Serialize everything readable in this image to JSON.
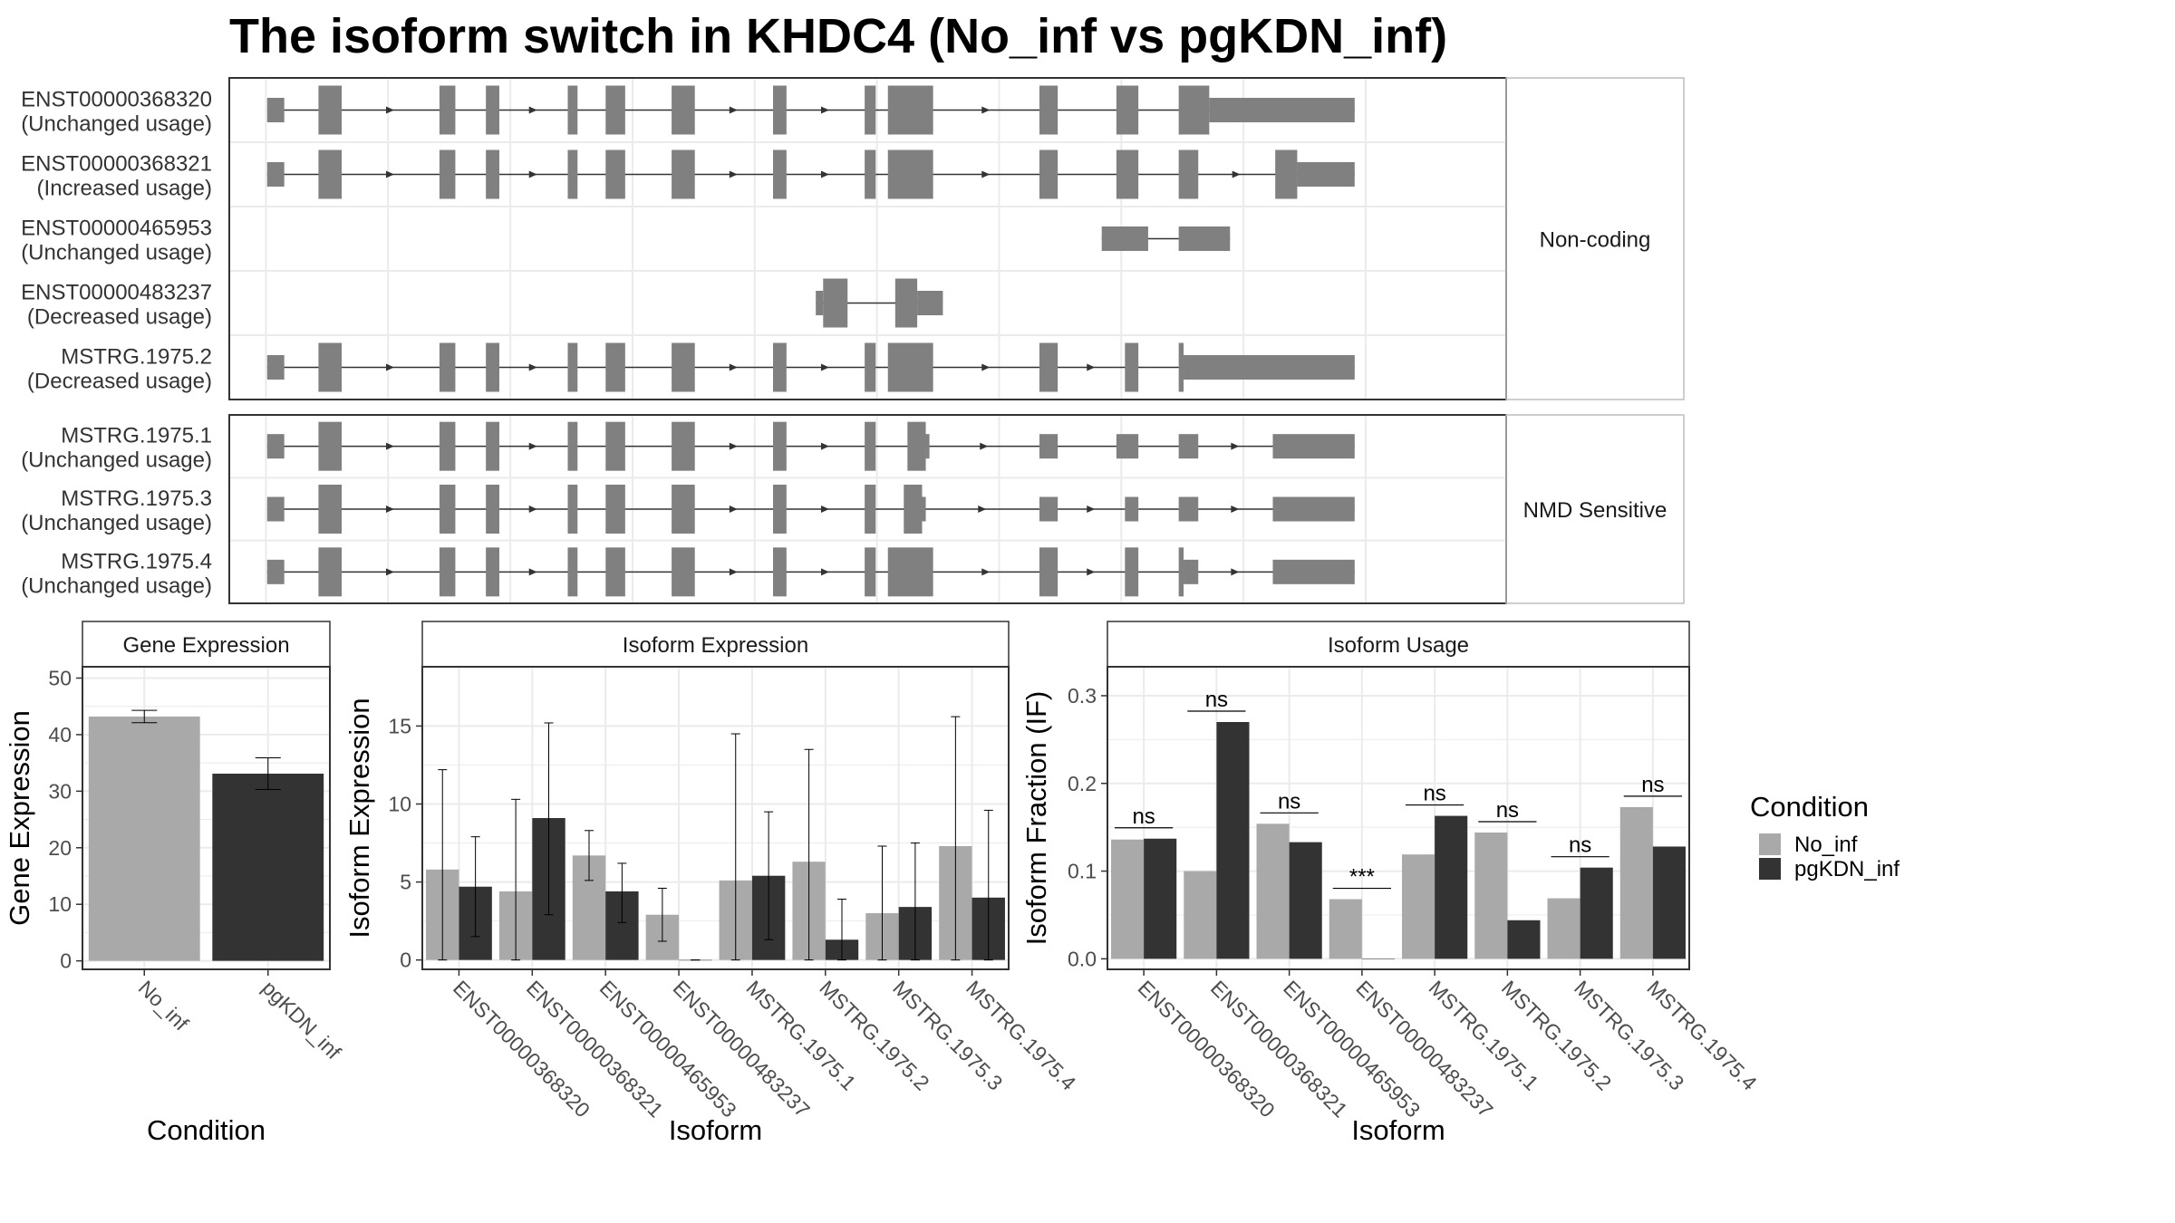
{
  "title": "The isoform switch in KHDC4 (No_inf vs pgKDN_inf)",
  "colors": {
    "no_inf": "#a9a9a9",
    "pgkdn_inf": "#333333",
    "exon": "#808080",
    "grid": "#ebebeb",
    "frame": "#333333"
  },
  "legend": {
    "title": "Condition",
    "items": [
      "No_inf",
      "pgKDN_inf"
    ]
  },
  "chart_data": [
    {
      "type": "gene_structure",
      "x_breaks": [
        0,
        1,
        2,
        3,
        4,
        5,
        6,
        7,
        8,
        9
      ],
      "x_range": [
        -0.3,
        10.15
      ],
      "groups": [
        {
          "label": "Non-coding",
          "transcripts": [
            {
              "name": "ENST00000368320",
              "usage": "(Unchanged usage)",
              "exons": [
                [
                  0.01,
                  0.15,
                  0.5
                ],
                [
                  0.43,
                  0.62,
                  1
                ],
                [
                  1.42,
                  1.55,
                  1
                ],
                [
                  1.8,
                  1.91,
                  1
                ],
                [
                  2.47,
                  2.55,
                  1
                ],
                [
                  2.78,
                  2.94,
                  1
                ],
                [
                  3.32,
                  3.51,
                  1
                ],
                [
                  4.15,
                  4.26,
                  1
                ],
                [
                  4.9,
                  4.99,
                  1
                ],
                [
                  5.09,
                  5.46,
                  1
                ],
                [
                  6.33,
                  6.48,
                  1
                ],
                [
                  6.96,
                  7.14,
                  1
                ],
                [
                  7.47,
                  7.72,
                  1
                ],
                [
                  7.72,
                  8.91,
                  0.5
                ]
              ]
            },
            {
              "name": "ENST00000368321",
              "usage": "(Increased usage)",
              "exons": [
                [
                  0.01,
                  0.15,
                  0.5
                ],
                [
                  0.43,
                  0.62,
                  1
                ],
                [
                  1.42,
                  1.55,
                  1
                ],
                [
                  1.8,
                  1.91,
                  1
                ],
                [
                  2.47,
                  2.55,
                  1
                ],
                [
                  2.78,
                  2.94,
                  1
                ],
                [
                  3.32,
                  3.51,
                  1
                ],
                [
                  4.15,
                  4.26,
                  1
                ],
                [
                  4.9,
                  4.99,
                  1
                ],
                [
                  5.09,
                  5.46,
                  1
                ],
                [
                  6.33,
                  6.48,
                  1
                ],
                [
                  6.96,
                  7.14,
                  1
                ],
                [
                  7.47,
                  7.63,
                  1
                ],
                [
                  8.26,
                  8.44,
                  1
                ],
                [
                  8.44,
                  8.91,
                  0.5
                ]
              ]
            },
            {
              "name": "ENST00000465953",
              "usage": "(Unchanged usage)",
              "exons": [
                [
                  6.84,
                  7.22,
                  0.5
                ],
                [
                  7.47,
                  7.89,
                  0.5
                ]
              ]
            },
            {
              "name": "ENST00000483237",
              "usage": "(Decreased usage)",
              "exons": [
                [
                  4.5,
                  4.56,
                  0.5
                ],
                [
                  4.56,
                  4.76,
                  1
                ],
                [
                  5.15,
                  5.33,
                  1
                ],
                [
                  5.33,
                  5.54,
                  0.5
                ]
              ]
            },
            {
              "name": "MSTRG.1975.2",
              "usage": "(Decreased usage)",
              "exons": [
                [
                  0.01,
                  0.15,
                  0.5
                ],
                [
                  0.43,
                  0.62,
                  1
                ],
                [
                  1.42,
                  1.55,
                  1
                ],
                [
                  1.8,
                  1.91,
                  1
                ],
                [
                  2.47,
                  2.55,
                  1
                ],
                [
                  2.78,
                  2.94,
                  1
                ],
                [
                  3.32,
                  3.51,
                  1
                ],
                [
                  4.15,
                  4.26,
                  1
                ],
                [
                  4.9,
                  4.99,
                  1
                ],
                [
                  5.09,
                  5.46,
                  1
                ],
                [
                  6.33,
                  6.48,
                  1
                ],
                [
                  7.03,
                  7.14,
                  1
                ],
                [
                  7.47,
                  7.51,
                  1
                ],
                [
                  7.51,
                  8.91,
                  0.5
                ]
              ]
            }
          ]
        },
        {
          "label": "NMD Sensitive",
          "transcripts": [
            {
              "name": "MSTRG.1975.1",
              "usage": "(Unchanged usage)",
              "exons": [
                [
                  0.01,
                  0.15,
                  0.5
                ],
                [
                  0.43,
                  0.62,
                  1
                ],
                [
                  1.42,
                  1.55,
                  1
                ],
                [
                  1.8,
                  1.91,
                  1
                ],
                [
                  2.47,
                  2.55,
                  1
                ],
                [
                  2.78,
                  2.94,
                  1
                ],
                [
                  3.32,
                  3.51,
                  1
                ],
                [
                  4.15,
                  4.26,
                  1
                ],
                [
                  4.9,
                  4.99,
                  1
                ],
                [
                  5.25,
                  5.4,
                  1
                ],
                [
                  5.4,
                  5.43,
                  0.5
                ],
                [
                  6.33,
                  6.48,
                  0.5
                ],
                [
                  6.96,
                  7.14,
                  0.5
                ],
                [
                  7.47,
                  7.63,
                  0.5
                ],
                [
                  8.24,
                  8.91,
                  0.5
                ]
              ]
            },
            {
              "name": "MSTRG.1975.3",
              "usage": "(Unchanged usage)",
              "exons": [
                [
                  0.01,
                  0.15,
                  0.5
                ],
                [
                  0.43,
                  0.62,
                  1
                ],
                [
                  1.42,
                  1.55,
                  1
                ],
                [
                  1.8,
                  1.91,
                  1
                ],
                [
                  2.47,
                  2.55,
                  1
                ],
                [
                  2.78,
                  2.94,
                  1
                ],
                [
                  3.32,
                  3.51,
                  1
                ],
                [
                  4.15,
                  4.26,
                  1
                ],
                [
                  4.9,
                  4.99,
                  1
                ],
                [
                  5.22,
                  5.37,
                  1
                ],
                [
                  5.37,
                  5.4,
                  0.5
                ],
                [
                  6.33,
                  6.48,
                  0.5
                ],
                [
                  7.03,
                  7.14,
                  0.5
                ],
                [
                  7.47,
                  7.63,
                  0.5
                ],
                [
                  8.24,
                  8.91,
                  0.5
                ]
              ]
            },
            {
              "name": "MSTRG.1975.4",
              "usage": "(Unchanged usage)",
              "exons": [
                [
                  0.01,
                  0.15,
                  0.5
                ],
                [
                  0.43,
                  0.62,
                  1
                ],
                [
                  1.42,
                  1.55,
                  1
                ],
                [
                  1.8,
                  1.91,
                  1
                ],
                [
                  2.47,
                  2.55,
                  1
                ],
                [
                  2.78,
                  2.94,
                  1
                ],
                [
                  3.32,
                  3.51,
                  1
                ],
                [
                  4.15,
                  4.26,
                  1
                ],
                [
                  4.9,
                  4.99,
                  1
                ],
                [
                  5.09,
                  5.46,
                  1
                ],
                [
                  6.33,
                  6.48,
                  1
                ],
                [
                  7.03,
                  7.14,
                  1
                ],
                [
                  7.47,
                  7.51,
                  1
                ],
                [
                  7.51,
                  7.63,
                  0.5
                ],
                [
                  8.24,
                  8.91,
                  0.5
                ]
              ]
            }
          ]
        }
      ]
    },
    {
      "type": "bar",
      "strip": "Gene Expression",
      "xlabel": "Condition",
      "ylabel": "Gene Expression",
      "ylim": [
        -1.5,
        52
      ],
      "yticks": [
        0,
        10,
        20,
        30,
        40,
        50
      ],
      "categories": [
        "No_inf",
        "pgKDN_inf"
      ],
      "values": [
        43.2,
        33.1
      ],
      "error": [
        [
          42.1,
          44.3
        ],
        [
          30.3,
          35.9
        ]
      ]
    },
    {
      "type": "bar",
      "strip": "Isoform Expression",
      "xlabel": "Isoform",
      "ylabel": "Isoform Expression",
      "ylim": [
        -0.6,
        18.8
      ],
      "yticks": [
        0,
        5,
        10,
        15
      ],
      "categories": [
        "ENST00000368320",
        "ENST00000368321",
        "ENST00000465953",
        "ENST00000483237",
        "MSTRG.1975.1",
        "MSTRG.1975.2",
        "MSTRG.1975.3",
        "MSTRG.1975.4"
      ],
      "series": [
        {
          "name": "No_inf",
          "values": [
            5.8,
            4.4,
            6.7,
            2.9,
            5.1,
            6.3,
            3.0,
            7.3
          ],
          "error": [
            [
              0,
              12.2
            ],
            [
              0,
              10.3
            ],
            [
              5.1,
              8.3
            ],
            [
              1.2,
              4.6
            ],
            [
              0,
              14.5
            ],
            [
              0,
              13.5
            ],
            [
              0,
              7.3
            ],
            [
              0,
              15.6
            ]
          ]
        },
        {
          "name": "pgKDN_inf",
          "values": [
            4.7,
            9.1,
            4.4,
            0.0,
            5.4,
            1.3,
            3.4,
            4.0
          ],
          "error": [
            [
              1.5,
              7.9
            ],
            [
              2.9,
              15.2
            ],
            [
              2.4,
              6.2
            ],
            [
              0,
              0
            ],
            [
              1.3,
              9.5
            ],
            [
              0,
              3.9
            ],
            [
              0,
              7.5
            ],
            [
              0,
              9.6
            ]
          ]
        }
      ]
    },
    {
      "type": "bar",
      "strip": "Isoform Usage",
      "xlabel": "Isoform",
      "ylabel": "Isoform Fraction (IF)",
      "ylim": [
        -0.012,
        0.333
      ],
      "yticks": [
        0.0,
        0.1,
        0.2,
        0.3
      ],
      "categories": [
        "ENST00000368320",
        "ENST00000368321",
        "ENST00000465953",
        "ENST00000483237",
        "MSTRG.1975.1",
        "MSTRG.1975.2",
        "MSTRG.1975.3",
        "MSTRG.1975.4"
      ],
      "series": [
        {
          "name": "No_inf",
          "values": [
            0.136,
            0.1,
            0.154,
            0.068,
            0.119,
            0.144,
            0.069,
            0.173
          ]
        },
        {
          "name": "pgKDN_inf",
          "values": [
            0.137,
            0.27,
            0.133,
            0.0,
            0.163,
            0.044,
            0.104,
            0.128
          ]
        }
      ],
      "significance": [
        "ns",
        "ns",
        "ns",
        "***",
        "ns",
        "ns",
        "ns",
        "ns"
      ]
    }
  ]
}
